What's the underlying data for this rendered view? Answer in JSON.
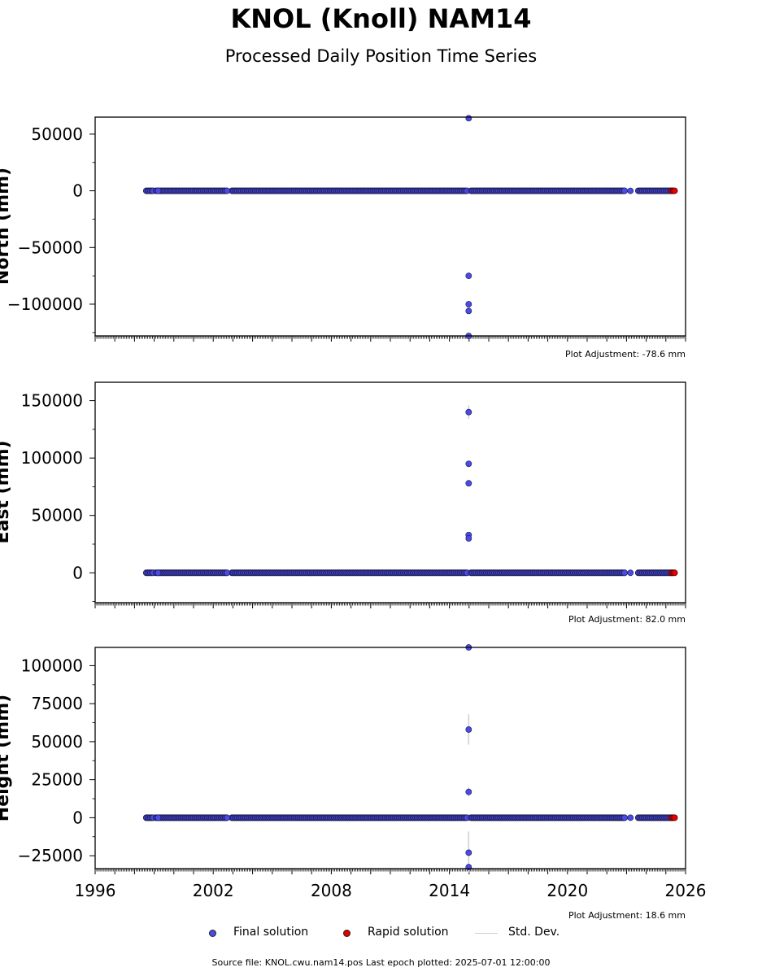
{
  "figure": {
    "title": "KNOL (Knoll) NAM14",
    "subtitle": "Processed Daily Position Time Series",
    "source_line": "Source file: KNOL.cwu.nam14.pos  Last epoch plotted: 2025-07-01 12:00:00"
  },
  "legend": {
    "final_label": "Final solution",
    "rapid_label": "Rapid solution",
    "std_label": "Std. Dev."
  },
  "colors": {
    "final": "#4a4ae6",
    "final_edge": "#1a1a4a",
    "rapid": "#e60000",
    "std": "#cfcfcf"
  },
  "chart_data": [
    {
      "type": "scatter",
      "ylabel": "North (mm)",
      "adjustment": "Plot Adjustment: -78.6 mm",
      "xlim": [
        1996,
        2026
      ],
      "ylim": [
        -128000,
        65000
      ],
      "yticks": [
        50000,
        0,
        -50000,
        -100000
      ],
      "ytick_labels": [
        "50000",
        "0",
        "−50000",
        "−100000"
      ],
      "show_xtick_labels": false,
      "coverage": [
        [
          1998.6,
          1999.0
        ],
        [
          1999.1,
          2002.7
        ],
        [
          2002.95,
          2014.9
        ],
        [
          2015.1,
          2022.9
        ],
        [
          2023.6,
          2025.3
        ]
      ],
      "rapid_range": [
        2025.3,
        2025.5
      ],
      "outliers": [
        {
          "x": 2014.98,
          "y": 64000,
          "err": 0
        },
        {
          "x": 2014.98,
          "y": -75000,
          "err": 0
        },
        {
          "x": 2014.98,
          "y": -100000,
          "err": 0
        },
        {
          "x": 2014.98,
          "y": -106000,
          "err": 0
        },
        {
          "x": 2014.98,
          "y": -128000,
          "err": 0
        },
        {
          "x": 2002.7,
          "y": 0,
          "err": 0
        },
        {
          "x": 1999.2,
          "y": 0,
          "err": 0
        },
        {
          "x": 2022.9,
          "y": 0,
          "err": 0
        },
        {
          "x": 2023.2,
          "y": 0,
          "err": 0
        }
      ]
    },
    {
      "type": "scatter",
      "ylabel": "East (mm)",
      "adjustment": "Plot Adjustment: 82.0 mm",
      "xlim": [
        1996,
        2026
      ],
      "ylim": [
        -26000,
        166000
      ],
      "yticks": [
        150000,
        100000,
        50000,
        0
      ],
      "ytick_labels": [
        "150000",
        "100000",
        "50000",
        "0"
      ],
      "show_xtick_labels": false,
      "coverage": [
        [
          1998.6,
          1999.0
        ],
        [
          1999.1,
          2002.7
        ],
        [
          2002.95,
          2014.9
        ],
        [
          2015.1,
          2022.9
        ],
        [
          2023.6,
          2025.3
        ]
      ],
      "rapid_range": [
        2025.3,
        2025.5
      ],
      "outliers": [
        {
          "x": 2014.98,
          "y": 140000,
          "err": 6000
        },
        {
          "x": 2014.98,
          "y": 95000,
          "err": 0
        },
        {
          "x": 2014.98,
          "y": 78000,
          "err": 0
        },
        {
          "x": 2014.98,
          "y": 33000,
          "err": 0
        },
        {
          "x": 2014.98,
          "y": 30000,
          "err": 0
        },
        {
          "x": 2002.7,
          "y": 0,
          "err": 0
        },
        {
          "x": 1999.2,
          "y": 0,
          "err": 0
        },
        {
          "x": 2022.9,
          "y": 0,
          "err": 0
        },
        {
          "x": 2023.2,
          "y": 0,
          "err": 0
        }
      ]
    },
    {
      "type": "scatter",
      "ylabel": "Height (mm)",
      "adjustment": "Plot Adjustment: 18.6 mm",
      "xlim": [
        1996,
        2026
      ],
      "ylim": [
        -33500,
        112000
      ],
      "yticks": [
        100000,
        75000,
        50000,
        25000,
        0,
        -25000
      ],
      "ytick_labels": [
        "100000",
        "75000",
        "50000",
        "25000",
        "0",
        "−25000"
      ],
      "show_xtick_labels": true,
      "xticks": [
        1996,
        2002,
        2008,
        2014,
        2020,
        2026
      ],
      "xtick_labels": [
        "1996",
        "2002",
        "2008",
        "2014",
        "2020",
        "2026"
      ],
      "coverage": [
        [
          1998.6,
          1999.0
        ],
        [
          1999.1,
          2002.7
        ],
        [
          2002.95,
          2014.9
        ],
        [
          2015.1,
          2022.9
        ],
        [
          2023.6,
          2025.3
        ]
      ],
      "rapid_range": [
        2025.3,
        2025.5
      ],
      "outliers": [
        {
          "x": 2014.98,
          "y": 112000,
          "err": 0
        },
        {
          "x": 2014.98,
          "y": 58000,
          "err": 10000
        },
        {
          "x": 2014.98,
          "y": 17000,
          "err": 3000
        },
        {
          "x": 2014.98,
          "y": -23000,
          "err": 14000
        },
        {
          "x": 2014.98,
          "y": -32500,
          "err": 0
        },
        {
          "x": 2002.7,
          "y": 0,
          "err": 0
        },
        {
          "x": 1999.2,
          "y": 0,
          "err": 0
        },
        {
          "x": 2022.9,
          "y": 0,
          "err": 0
        },
        {
          "x": 2023.2,
          "y": 0,
          "err": 0
        }
      ]
    }
  ]
}
